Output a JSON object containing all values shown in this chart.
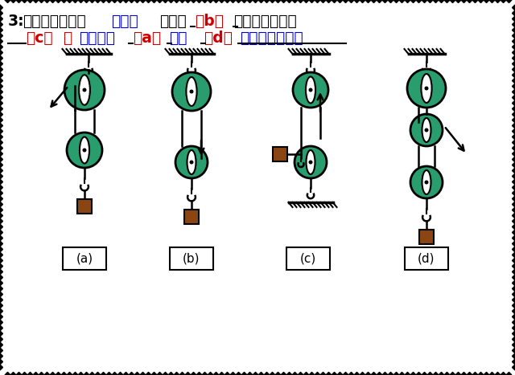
{
  "fig_bg": "#ffffff",
  "pulley_color": "#2a9d6e",
  "weight_color": "#8B4513",
  "title_parts": [
    {
      "text": "3:",
      "color": "#000000",
      "bold": true
    },
    {
      "text": "如图所示的四个",
      "color": "#000000",
      "bold": true
    },
    {
      "text": "滑轮组",
      "color": "#0000cc",
      "bold": true
    },
    {
      "text": "中，图",
      "color": "#000000",
      "bold": true
    },
    {
      "text": "（b）",
      "color": "#cc0000",
      "bold": true
    },
    {
      "text": "可省一半力，图",
      "color": "#000000",
      "bold": true
    }
  ],
  "title_line2": [
    {
      "text": "（c）",
      "color": "#cc0000",
      "bold": true
    },
    {
      "text": "最",
      "color": "#cc0000",
      "bold": true
    },
    {
      "text": "费力，图",
      "color": "#0000cc",
      "bold": true
    },
    {
      "text": "（a）",
      "color": "#cc0000",
      "bold": true
    },
    {
      "text": "和图",
      "color": "#0000cc",
      "bold": true
    },
    {
      "text": "（d）",
      "color": "#cc0000",
      "bold": true
    },
    {
      "text": "用力大小一样。",
      "color": "#0000cc",
      "bold": true
    }
  ],
  "labels": [
    "(a)",
    "(b)",
    "(c)",
    "(d)"
  ]
}
